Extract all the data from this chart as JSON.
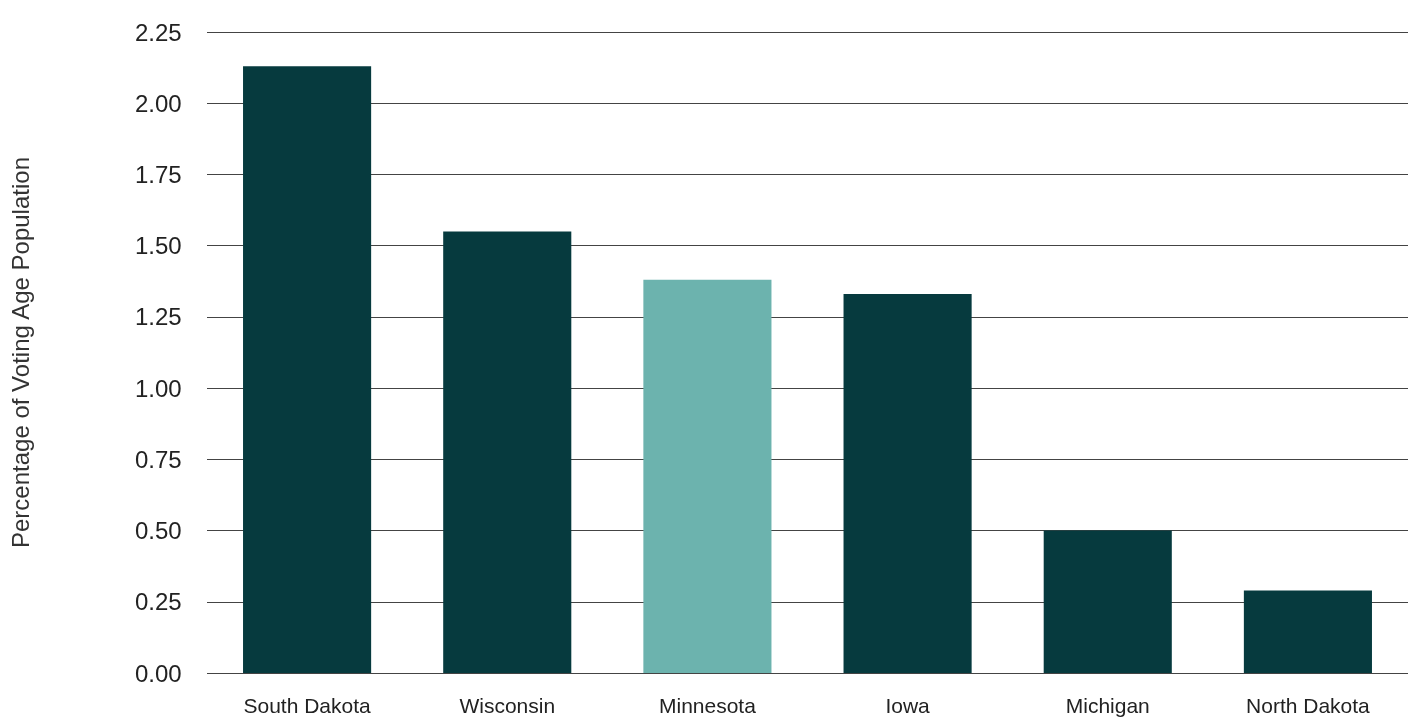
{
  "chart_data": {
    "type": "bar",
    "ylabel": "Percentage of Voting Age Population",
    "categories": [
      "South Dakota",
      "Wisconsin",
      "Minnesota",
      "Iowa",
      "Michigan",
      "North Dakota"
    ],
    "values": [
      2.13,
      1.55,
      1.38,
      1.33,
      0.5,
      0.29
    ],
    "colors": [
      "#063a3e",
      "#063a3e",
      "#6cb3ae",
      "#063a3e",
      "#063a3e",
      "#063a3e"
    ],
    "ylim": [
      0,
      2.25
    ],
    "yticks": [
      {
        "value": 0,
        "label": "0.00"
      },
      {
        "value": 0.25,
        "label": "0.25"
      },
      {
        "value": 0.5,
        "label": "0.50"
      },
      {
        "value": 0.75,
        "label": "0.75"
      },
      {
        "value": 1,
        "label": "1.00"
      },
      {
        "value": 1.25,
        "label": "1.25"
      },
      {
        "value": 1.5,
        "label": "1.50"
      },
      {
        "value": 1.75,
        "label": "1.75"
      },
      {
        "value": 2,
        "label": "2.00"
      },
      {
        "value": 2.25,
        "label": "2.25"
      }
    ],
    "grid": "y"
  }
}
